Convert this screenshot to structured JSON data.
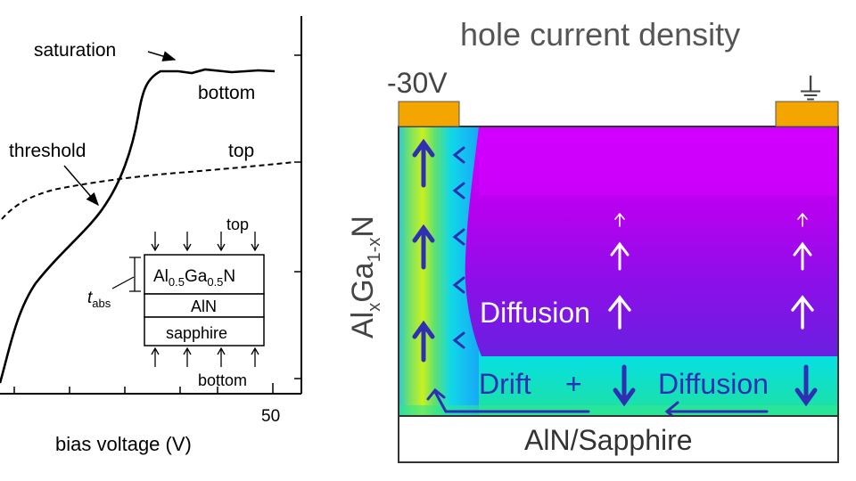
{
  "left_panel": {
    "annotations": {
      "saturation": "saturation",
      "threshold": "threshold",
      "bottom": "bottom",
      "top": "top"
    },
    "x_tick": "50",
    "xlabel": "bias voltage (V)",
    "inset": {
      "top_label": "top",
      "bottom_label": "bottom",
      "t_symbol": "t",
      "t_subscript": "abs",
      "layer1": {
        "text_a": "Al",
        "sub_a": "0.5",
        "text_b": "Ga",
        "sub_b": "0.5",
        "text_c": "N"
      },
      "layer2": "AlN",
      "layer3": "sapphire"
    }
  },
  "right_panel": {
    "title": "hole current density",
    "voltage_label": "-30V",
    "ground_symbol": "⏚",
    "ylabel": {
      "a": "Al",
      "a_sub": "x",
      "b": "Ga",
      "b_sub": "1-x",
      "c": "N"
    },
    "diffusion_label": "Diffusion",
    "drift_label": "Drift",
    "plus": "+",
    "diffusion2_label": "Diffusion",
    "substrate_label": "AlN/Sapphire"
  },
  "colors": {
    "arrow": "#2f2fb4",
    "contact": "#f5a500",
    "magenta": "#c000f0",
    "cyan": "#00d8f8",
    "green": "#78e040"
  }
}
